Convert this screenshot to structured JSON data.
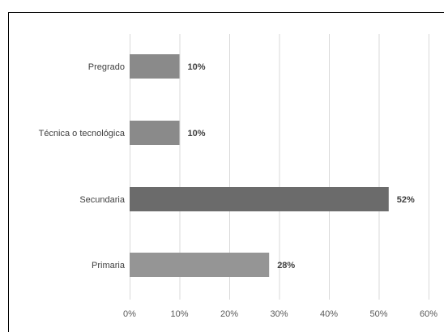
{
  "chart_data": {
    "type": "bar",
    "orientation": "horizontal",
    "categories": [
      "Pregrado",
      "Técnica o tecnológica",
      "Secundaria",
      "Primaria"
    ],
    "values": [
      10,
      10,
      52,
      28
    ],
    "value_labels": [
      "10%",
      "10%",
      "52%",
      "28%"
    ],
    "bar_colors": [
      "#8a8a8a",
      "#8a8a8a",
      "#6b6b6b",
      "#959595"
    ],
    "x_ticks": [
      0,
      10,
      20,
      30,
      40,
      50,
      60
    ],
    "x_tick_labels": [
      "0%",
      "10%",
      "20%",
      "30%",
      "40%",
      "50%",
      "60%"
    ],
    "xlim": [
      0,
      60
    ],
    "grid": true,
    "legend": false
  }
}
